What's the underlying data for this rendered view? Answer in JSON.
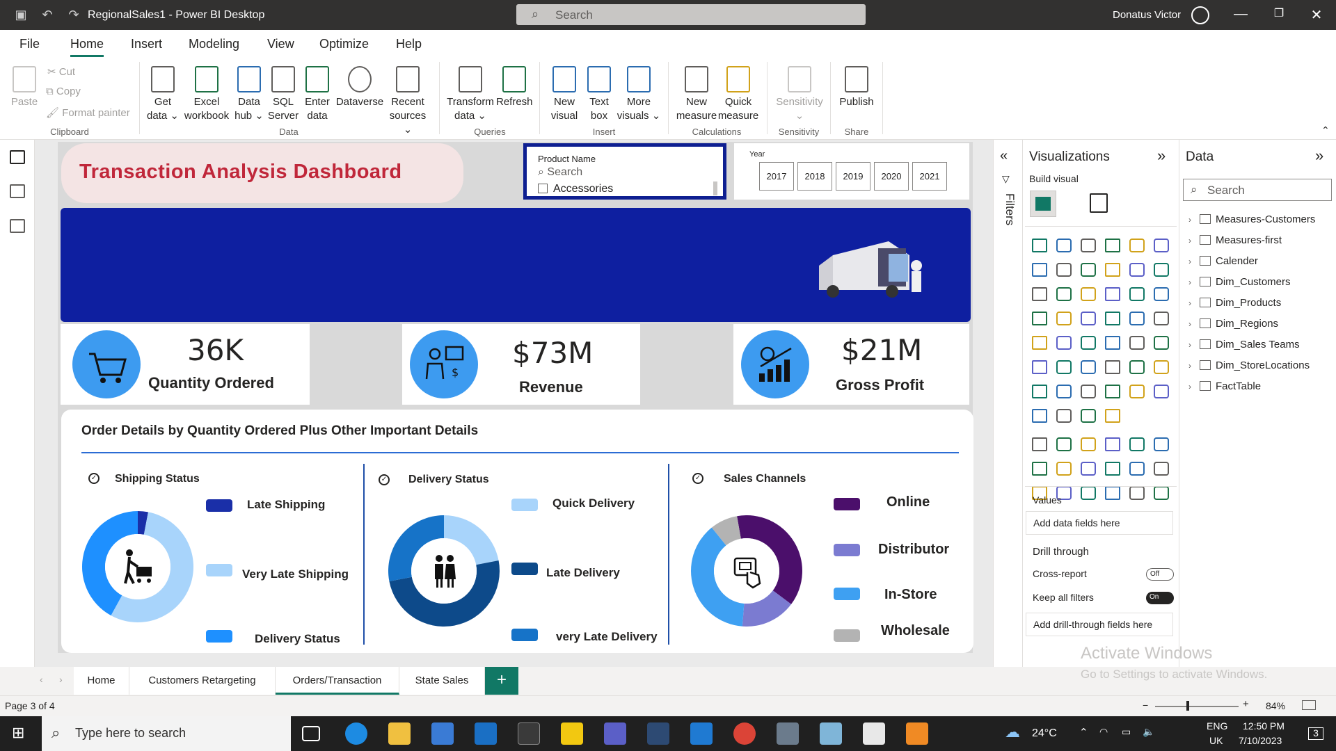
{
  "window": {
    "title": "RegionalSales1 - Power BI Desktop",
    "search_placeholder": "Search",
    "user_name": "Donatus Victor"
  },
  "menu": {
    "tabs": [
      "File",
      "Home",
      "Insert",
      "Modeling",
      "View",
      "Optimize",
      "Help"
    ],
    "active": "Home"
  },
  "ribbon": {
    "clipboard": {
      "paste": "Paste",
      "cut": "Cut",
      "copy": "Copy",
      "format_painter": "Format painter",
      "label": "Clipboard"
    },
    "data": {
      "get_data": [
        "Get",
        "data ⌄"
      ],
      "excel": [
        "Excel",
        "workbook"
      ],
      "data_hub": [
        "Data",
        "hub ⌄"
      ],
      "sql": [
        "SQL",
        "Server"
      ],
      "enter": [
        "Enter",
        "data"
      ],
      "dataverse": [
        "Dataverse"
      ],
      "recent": [
        "Recent",
        "sources ⌄"
      ],
      "label": "Data"
    },
    "queries": {
      "transform": [
        "Transform",
        "data ⌄"
      ],
      "refresh": [
        "Refresh"
      ],
      "label": "Queries"
    },
    "insert": {
      "new_visual": [
        "New",
        "visual"
      ],
      "text_box": [
        "Text",
        "box"
      ],
      "more_visuals": [
        "More",
        "visuals ⌄"
      ],
      "label": "Insert"
    },
    "calculations": {
      "new_measure": [
        "New",
        "measure"
      ],
      "quick_measure": [
        "Quick",
        "measure"
      ],
      "label": "Calculations"
    },
    "sensitivity": {
      "button": [
        "Sensitivity",
        "⌄"
      ],
      "label": "Sensitivity"
    },
    "share": {
      "publish": [
        "Publish"
      ],
      "label": "Share"
    }
  },
  "report": {
    "title": "Transaction Analysis Dashboard",
    "product_slicer": {
      "label": "Product Name",
      "search": "Search",
      "option": "Accessories"
    },
    "year_slicer": {
      "label": "Year",
      "years": [
        "2017",
        "2018",
        "2019",
        "2020",
        "2021"
      ]
    },
    "kpis": [
      {
        "value": "36K",
        "label": "Quantity Ordered",
        "icon": "shopping-cart-icon"
      },
      {
        "value": "$73M",
        "label": "Revenue",
        "icon": "businessman-chart-icon"
      },
      {
        "value": "$21M",
        "label": "Gross Profit",
        "icon": "growth-chart-icon"
      }
    ],
    "details": {
      "title": "Order Details by Quantity Ordered Plus Other Important Details",
      "shipping": {
        "heading": "Shipping Status",
        "legend": [
          "Late Shipping",
          "Very Late Shipping",
          "Delivery Status"
        ],
        "colors": [
          "#1a2fa8",
          "#a8d4fb",
          "#1e90ff"
        ],
        "values": [
          3,
          55,
          42
        ]
      },
      "delivery": {
        "heading": "Delivery Status",
        "legend": [
          "Quick Delivery",
          "Late Delivery",
          "very Late Delivery"
        ],
        "colors": [
          "#a8d4fb",
          "#0d4a8a",
          "#1673c8"
        ],
        "values": [
          22,
          50,
          28
        ]
      },
      "channels": {
        "heading": "Sales Channels",
        "legend": [
          "Online",
          "Distributor",
          "In-Store",
          "Wholesale"
        ],
        "colors": [
          "#4b0f6b",
          "#7b7bd1",
          "#3ea0f2",
          "#b3b3b3"
        ],
        "values": [
          38,
          16,
          38,
          8
        ]
      }
    }
  },
  "filters_label": "Filters",
  "visualizations": {
    "title": "Visualizations",
    "build": "Build visual",
    "values_label": "Values",
    "values_field": "Add data fields here",
    "drill_label": "Drill through",
    "cross_report": "Cross-report",
    "cross_report_state": "Off",
    "keep_filters": "Keep all filters",
    "keep_filters_state": "On",
    "drill_field": "Add drill-through fields here"
  },
  "data_pane": {
    "title": "Data",
    "search": "Search",
    "tables": [
      "Measures-Customers",
      "Measures-first",
      "Calender",
      "Dim_Customers",
      "Dim_Products",
      "Dim_Regions",
      "Dim_Sales Teams",
      "Dim_StoreLocations",
      "FactTable"
    ]
  },
  "activate": {
    "line1": "Activate Windows",
    "line2": "Go to Settings to activate Windows."
  },
  "pages": {
    "tabs": [
      "Home",
      "Customers Retargeting",
      "Orders/Transaction",
      "State Sales"
    ],
    "active": "Orders/Transaction",
    "add": "+"
  },
  "status": {
    "page": "Page 3 of 4",
    "zoom": "84%"
  },
  "taskbar": {
    "search": "Type here to search",
    "weather": "24°C",
    "lang1": "ENG",
    "lang2": "UK",
    "time": "12:50 PM",
    "date": "7/10/2023",
    "notif": "3"
  }
}
